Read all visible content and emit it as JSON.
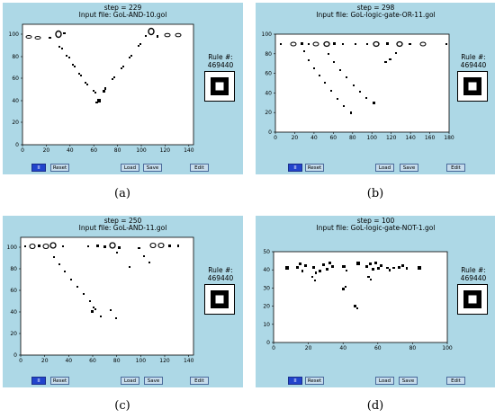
{
  "panels": [
    {
      "id": "a",
      "step_text": "step =     229",
      "input_text": "Input file: GoL-AND-10.gol",
      "x_ticks": [
        "0",
        "20",
        "40",
        "60",
        "80",
        "100",
        "120",
        "140"
      ],
      "y_ticks": [
        "0",
        "20",
        "40",
        "60",
        "80",
        "100"
      ],
      "rule_label": "Rule #:",
      "rule_value": "469440",
      "buttons": {
        "pause": "II",
        "reset": "Reset",
        "load": "Load",
        "save": "Save",
        "edit": "Edit"
      },
      "caption": "(a)"
    },
    {
      "id": "b",
      "step_text": "step =     298",
      "input_text": "Input file: GoL-logic-gate-OR-11.gol",
      "x_ticks": [
        "0",
        "20",
        "40",
        "60",
        "80",
        "100",
        "120",
        "140",
        "160",
        "180"
      ],
      "y_ticks": [
        "0",
        "20",
        "40",
        "60",
        "80",
        "100"
      ],
      "rule_label": "Rule #:",
      "rule_value": "469440",
      "buttons": {
        "pause": "II",
        "reset": "Reset",
        "load": "Load",
        "save": "Save",
        "edit": "Edit"
      },
      "caption": "(b)"
    },
    {
      "id": "c",
      "step_text": "step =     250",
      "input_text": "Input file: GoL-AND-11.gol",
      "x_ticks": [
        "0",
        "20",
        "40",
        "60",
        "80",
        "100",
        "120",
        "140"
      ],
      "y_ticks": [
        "0",
        "20",
        "40",
        "60",
        "80",
        "100"
      ],
      "rule_label": "Rule #:",
      "rule_value": "469440",
      "buttons": {
        "pause": "II",
        "reset": "Reset",
        "load": "Load",
        "save": "Save",
        "edit": "Edit"
      },
      "caption": "(c)"
    },
    {
      "id": "d",
      "step_text": "step =     100",
      "input_text": "Input file: GoL-logic-gate-NOT-1.gol",
      "x_ticks": [
        "0",
        "20",
        "40",
        "60",
        "80",
        "100"
      ],
      "y_ticks": [
        "0",
        "10",
        "20",
        "30",
        "40",
        "50"
      ],
      "rule_label": "Rule #:",
      "rule_value": "469440",
      "buttons": {
        "pause": "II",
        "reset": "Reset",
        "load": "Load",
        "save": "Save",
        "edit": "Edit"
      },
      "caption": "(d)"
    }
  ],
  "colors": {
    "panel_bg": "#add8e6",
    "pause_button": "#2244cc",
    "button": "#c6dcec",
    "cell": "#000000"
  },
  "icons": [
    "rule-pattern-icon"
  ]
}
